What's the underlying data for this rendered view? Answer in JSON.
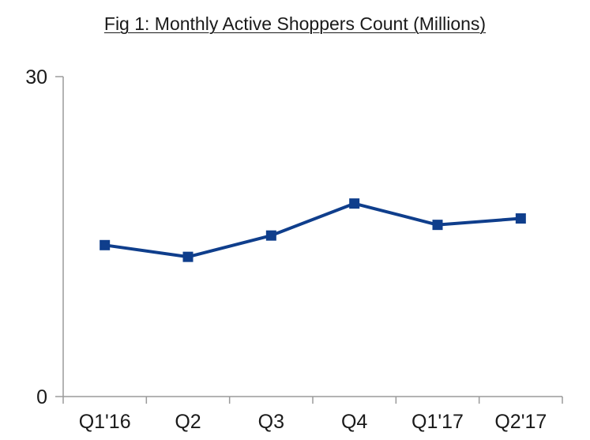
{
  "chart_data": {
    "type": "line",
    "title": "Fig 1: Monthly Active Shoppers Count (Millions)",
    "xlabel": "",
    "ylabel": "",
    "categories": [
      "Q1'16",
      "Q2",
      "Q3",
      "Q4",
      "Q1'17",
      "Q2'17"
    ],
    "series": [
      {
        "values": [
          14.2,
          13.1,
          15.1,
          18.1,
          16.1,
          16.7
        ],
        "color": "#0f3e8c"
      }
    ],
    "ylim": [
      0,
      30
    ],
    "y_ticks": [
      "0",
      "30"
    ],
    "grid": false,
    "legend": "none",
    "marker": "square"
  }
}
